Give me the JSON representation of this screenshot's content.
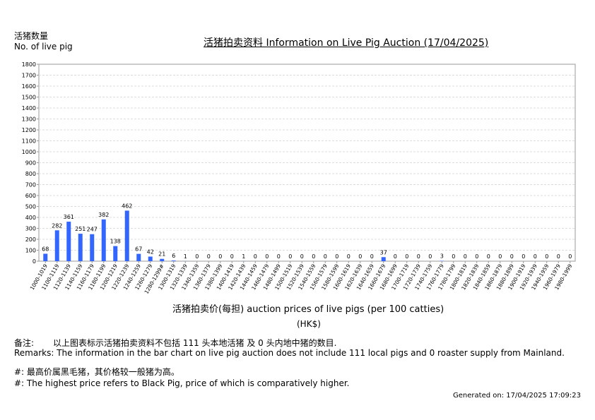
{
  "header": {
    "ylabel_zh": "活猪数量",
    "ylabel_en": "No. of live pig",
    "title": "活猪拍卖资料 Information on Live Pig Auction (17/04/2025)"
  },
  "axis": {
    "xlabel": "活猪拍卖价(每担) auction prices of live pigs (per 100 catties)",
    "xunit": "(HK$)"
  },
  "remarks": {
    "zh_label": "备注:",
    "zh_text": "以上图表标示活猪拍卖资料不包括 111 头本地活猪 及 0 头内地中猪的数目.",
    "en": "Remarks: The information in the bar chart on live pig auction does not include 111 local pigs and 0 roaster supply from Mainland.",
    "note_zh": "#: 最高价属黑毛猪，其价格较一般猪为高。",
    "note_en": "#: The highest price refers to Black Pig, price of which is comparatively higher."
  },
  "footer": {
    "generated": "Generated on: 17/04/2025 17:09:23"
  },
  "colors": {
    "bar": "#3366ff",
    "grid": "#dddddd",
    "axis": "#999999"
  },
  "chart_data": {
    "type": "bar",
    "title": "活猪拍卖资料 Information on Live Pig Auction (17/04/2025)",
    "xlabel": "活猪拍卖价(每担) auction prices of live pigs (per 100 catties)",
    "ylabel": "活猪数量 No. of live pig",
    "ylim": [
      0,
      1800
    ],
    "yticks": [
      0,
      100,
      200,
      300,
      400,
      500,
      600,
      700,
      800,
      900,
      1000,
      1100,
      1200,
      1300,
      1400,
      1500,
      1600,
      1700,
      1800
    ],
    "grid": true,
    "categories": [
      "1000-1019",
      "1100-1119",
      "1120-1139",
      "1140-1159",
      "1160-1179",
      "1180-1199",
      "1200-1219",
      "1220-1239",
      "1240-1259",
      "1260-1279",
      "1280-1299#",
      "1300-1319",
      "1320-1339",
      "1340-1359",
      "1360-1379",
      "1380-1399",
      "1400-1419",
      "1420-1439",
      "1440-1459",
      "1460-1479",
      "1480-1499",
      "1500-1519",
      "1520-1539",
      "1540-1559",
      "1560-1579",
      "1580-1599",
      "1600-1619",
      "1620-1639",
      "1640-1659",
      "1660-1679",
      "1680-1699",
      "1700-1719",
      "1720-1739",
      "1740-1759",
      "1760-1779",
      "1780-1799",
      "1800-1819",
      "1820-1839",
      "1840-1859",
      "1860-1879",
      "1880-1899",
      "1900-1919",
      "1920-1939",
      "1940-1959",
      "1960-1979",
      "1980-1999"
    ],
    "values": [
      68,
      282,
      361,
      251,
      247,
      382,
      138,
      462,
      67,
      42,
      21,
      6,
      1,
      0,
      0,
      0,
      0,
      1,
      0,
      0,
      0,
      0,
      0,
      0,
      0,
      0,
      0,
      0,
      0,
      37,
      0,
      0,
      0,
      0,
      3,
      0,
      0,
      0,
      0,
      0,
      0,
      0,
      0,
      0,
      0,
      0
    ]
  }
}
